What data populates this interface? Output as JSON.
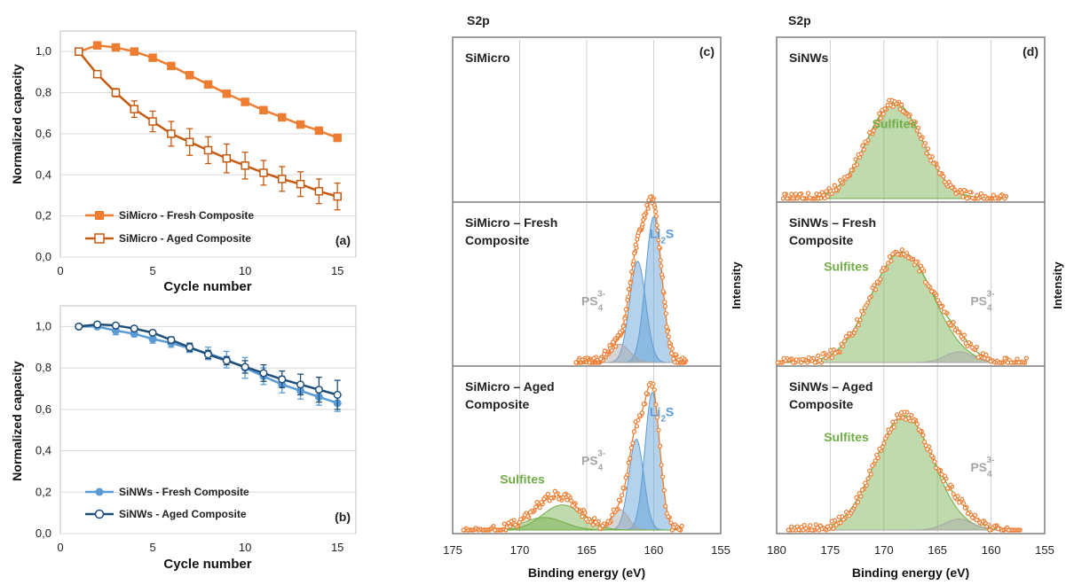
{
  "colors": {
    "fresh_orange": "#ED7D31",
    "aged_orange": "#C55A11",
    "fresh_blue": "#5B9BD5",
    "aged_navy": "#1F4E79",
    "sulfites_green": "#70AD47",
    "ps4_grey": "#A6A6A6",
    "li2s_blue": "#5B9BD5",
    "fit_orange": "#ED7D31"
  },
  "chart_data": [
    {
      "id": "a",
      "type": "line",
      "panel_label": "(a)",
      "xlabel": "Cycle number",
      "ylabel": "Normalized capacity",
      "xlim": [
        0,
        16
      ],
      "ylim": [
        0,
        1.1
      ],
      "x_ticks": [
        "0",
        "5",
        "10",
        "15"
      ],
      "y_ticks": [
        "0,0",
        "0,2",
        "0,4",
        "0,6",
        "0,8",
        "1,0"
      ],
      "legend_placement": "bottom-left",
      "x": [
        1,
        2,
        3,
        4,
        5,
        6,
        7,
        8,
        9,
        10,
        11,
        12,
        13,
        14,
        15
      ],
      "series": [
        {
          "name": "SiMicro - Fresh Composite",
          "marker": "filled-square",
          "color": "#ED7D31",
          "values": [
            1.0,
            1.03,
            1.02,
            1.0,
            0.97,
            0.93,
            0.885,
            0.84,
            0.795,
            0.755,
            0.715,
            0.68,
            0.645,
            0.615,
            0.58
          ]
        },
        {
          "name": "SiMicro - Aged Composite",
          "marker": "open-square",
          "color": "#C55A11",
          "values": [
            1.0,
            0.89,
            0.8,
            0.72,
            0.66,
            0.6,
            0.56,
            0.52,
            0.48,
            0.445,
            0.41,
            0.38,
            0.355,
            0.32,
            0.295
          ],
          "errors": [
            0,
            0.01,
            0.02,
            0.04,
            0.05,
            0.06,
            0.065,
            0.065,
            0.07,
            0.065,
            0.06,
            0.06,
            0.06,
            0.06,
            0.065
          ]
        }
      ]
    },
    {
      "id": "b",
      "type": "line",
      "panel_label": "(b)",
      "xlabel": "Cycle number",
      "ylabel": "Normalized capacity",
      "xlim": [
        0,
        16
      ],
      "ylim": [
        0,
        1.1
      ],
      "x_ticks": [
        "0",
        "5",
        "10",
        "15"
      ],
      "y_ticks": [
        "0,0",
        "0,2",
        "0,4",
        "0,6",
        "0,8",
        "1,0"
      ],
      "legend_placement": "bottom-left",
      "x": [
        1,
        2,
        3,
        4,
        5,
        6,
        7,
        8,
        9,
        10,
        11,
        12,
        13,
        14,
        15
      ],
      "series": [
        {
          "name": "SiNWs - Fresh Composite",
          "marker": "filled-circle",
          "color": "#5B9BD5",
          "values": [
            1.0,
            1.0,
            0.98,
            0.965,
            0.94,
            0.92,
            0.895,
            0.87,
            0.84,
            0.8,
            0.76,
            0.72,
            0.69,
            0.66,
            0.63
          ],
          "errors": [
            0,
            0.01,
            0.02,
            0.015,
            0.02,
            0.02,
            0.02,
            0.03,
            0.04,
            0.05,
            0.04,
            0.04,
            0.04,
            0.04,
            0.04
          ]
        },
        {
          "name": "SiNWs - Aged Composite",
          "marker": "open-circle",
          "color": "#1F4E79",
          "values": [
            1.0,
            1.01,
            1.005,
            0.99,
            0.97,
            0.935,
            0.9,
            0.865,
            0.835,
            0.805,
            0.775,
            0.745,
            0.72,
            0.695,
            0.67
          ],
          "errors": [
            0,
            0.01,
            0.01,
            0.01,
            0.01,
            0.015,
            0.02,
            0.02,
            0.02,
            0.03,
            0.04,
            0.04,
            0.05,
            0.06,
            0.07
          ]
        }
      ]
    },
    {
      "id": "c",
      "type": "area",
      "header": "S2p",
      "panel_label": "(c)",
      "xlabel": "Binding energy (eV)",
      "ylabel": "Intensity",
      "xlim": [
        175,
        155
      ],
      "x_ticks": [
        "175",
        "170",
        "165",
        "160",
        "155"
      ],
      "grid": "vertical gridlines at 170, 165, 160",
      "subpanels": [
        {
          "title": [
            "SiMicro"
          ],
          "annotations": []
        },
        {
          "title": [
            "SiMicro – Fresh",
            "Composite"
          ],
          "annotations": [
            {
              "text": "Li",
              "sub": "2",
              "tail": "S",
              "color": "#5B9BD5",
              "x": 159.4,
              "rel_y": 0.78
            },
            {
              "text": "PS",
              "sub": "4",
              "sup": "3-",
              "color": "#A6A6A6",
              "x": 164.5,
              "rel_y": 0.37
            }
          ],
          "peaks": [
            {
              "name": "Li2S 2p3/2",
              "center": 160.0,
              "sigma": 0.6,
              "height": 0.95,
              "color": "#5B9BD5"
            },
            {
              "name": "Li2S 2p1/2",
              "center": 161.2,
              "sigma": 0.6,
              "height": 0.66,
              "color": "#5B9BD5"
            },
            {
              "name": "PS4 3-",
              "center": 162.6,
              "sigma": 0.8,
              "height": 0.12,
              "color": "#A6A6A6"
            }
          ]
        },
        {
          "title": [
            "SiMicro – Aged",
            "Composite"
          ],
          "annotations": [
            {
              "text": "Li",
              "sub": "2",
              "tail": "S",
              "color": "#5B9BD5",
              "x": 159.4,
              "rel_y": 0.7
            },
            {
              "text": "PS",
              "sub": "4",
              "sup": "3-",
              "color": "#A6A6A6",
              "x": 164.5,
              "rel_y": 0.41
            },
            {
              "text": "Sulfites",
              "color": "#70AD47",
              "x": 169.8,
              "rel_y": 0.3
            }
          ],
          "peaks": [
            {
              "name": "Li2S 2p3/2",
              "center": 160.1,
              "sigma": 0.55,
              "height": 0.88,
              "color": "#5B9BD5"
            },
            {
              "name": "Li2S 2p1/2",
              "center": 161.3,
              "sigma": 0.55,
              "height": 0.58,
              "color": "#5B9BD5"
            },
            {
              "name": "PS4 3-",
              "center": 162.5,
              "sigma": 0.6,
              "height": 0.13,
              "color": "#A6A6A6"
            },
            {
              "name": "Sulfites a",
              "center": 166.8,
              "sigma": 1.5,
              "height": 0.16,
              "color": "#70AD47"
            },
            {
              "name": "Sulfites b",
              "center": 168.2,
              "sigma": 1.5,
              "height": 0.08,
              "color": "#70AD47"
            }
          ]
        }
      ]
    },
    {
      "id": "d",
      "type": "area",
      "header": "S2p",
      "panel_label": "(d)",
      "xlabel": "Binding energy (eV)",
      "ylabel": "Intensity",
      "xlim": [
        180,
        155
      ],
      "x_ticks": [
        "180",
        "175",
        "170",
        "165",
        "160",
        "155"
      ],
      "grid": "vertical gridlines at 175, 170, 165, 160",
      "subpanels": [
        {
          "title": [
            "SiNWs"
          ],
          "annotations": [
            {
              "text": "Sulfites",
              "color": "#70AD47",
              "x": 169.0,
              "rel_y": 0.45
            }
          ],
          "peaks": [
            {
              "name": "Sulfites",
              "center": 169.0,
              "sigma": 2.6,
              "height": 0.62,
              "color": "#70AD47"
            }
          ]
        },
        {
          "title": [
            "SiNWs – Fresh",
            "Composite"
          ],
          "annotations": [
            {
              "text": "Sulfites",
              "color": "#70AD47",
              "x": 173.5,
              "rel_y": 0.58
            },
            {
              "text": "PS",
              "sub": "4",
              "sup": "3-",
              "color": "#A6A6A6",
              "x": 160.8,
              "rel_y": 0.37
            }
          ],
          "peaks": [
            {
              "name": "Sulfites",
              "center": 168.3,
              "sigma": 2.9,
              "height": 0.72,
              "color": "#70AD47"
            },
            {
              "name": "PS4 3-",
              "center": 163.0,
              "sigma": 1.3,
              "height": 0.07,
              "color": "#A6A6A6"
            }
          ]
        },
        {
          "title": [
            "SiNWs – Aged",
            "Composite"
          ],
          "annotations": [
            {
              "text": "Sulfites",
              "color": "#70AD47",
              "x": 173.5,
              "rel_y": 0.55
            },
            {
              "text": "PS",
              "sub": "4",
              "sup": "3-",
              "color": "#A6A6A6",
              "x": 160.8,
              "rel_y": 0.37
            }
          ],
          "peaks": [
            {
              "name": "Sulfites",
              "center": 168.1,
              "sigma": 2.7,
              "height": 0.73,
              "color": "#70AD47"
            },
            {
              "name": "PS4 3-",
              "center": 163.0,
              "sigma": 1.3,
              "height": 0.07,
              "color": "#A6A6A6"
            }
          ]
        }
      ]
    }
  ]
}
